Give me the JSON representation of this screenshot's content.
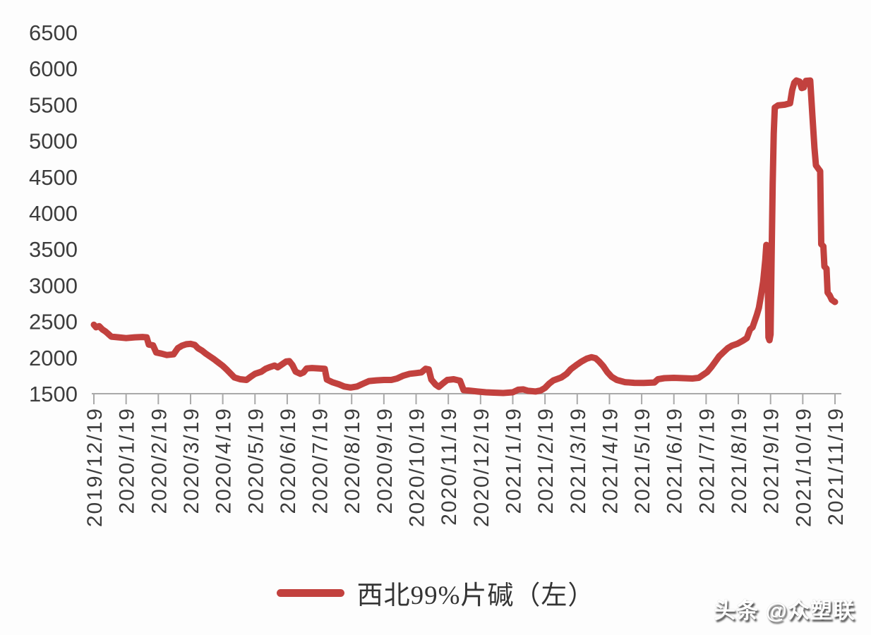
{
  "page": {
    "background": "#fdfdfd"
  },
  "legend": {
    "label": "西北99%片碱（左）",
    "swatch_color": "#c2413e"
  },
  "watermark": {
    "text": "头条 @众塑联"
  },
  "chart_data": {
    "type": "line",
    "title": "",
    "grid": false,
    "legend_position": "bottom",
    "axis_color": "#a9a9a9",
    "text_color": "#3d3d3d",
    "x_axis": {
      "start_date": "2019-12-19",
      "months": 23,
      "label_rotation": -90,
      "tick_labels": [
        "2019/12/19",
        "2020/1/19",
        "2020/2/19",
        "2020/3/19",
        "2020/4/19",
        "2020/5/19",
        "2020/6/19",
        "2020/7/19",
        "2020/8/19",
        "2020/9/19",
        "2020/10/19",
        "2020/11/19",
        "2020/12/19",
        "2021/1/19",
        "2021/2/19",
        "2021/3/19",
        "2021/4/19",
        "2021/5/19",
        "2021/6/19",
        "2021/7/19",
        "2021/8/19",
        "2021/9/19",
        "2021/10/19",
        "2021/11/19"
      ]
    },
    "y_axis": {
      "min": 1500,
      "max": 6500,
      "step": 500,
      "tick_labels": [
        "1500",
        "2000",
        "2500",
        "3000",
        "3500",
        "4000",
        "4500",
        "5000",
        "5500",
        "6000",
        "6500"
      ]
    },
    "series": [
      {
        "name": "西北99%片碱（左）",
        "color": "#c2413e",
        "points": [
          [
            "2019-12-19",
            2455
          ],
          [
            "2019-12-21",
            2420
          ],
          [
            "2019-12-24",
            2435
          ],
          [
            "2019-12-27",
            2390
          ],
          [
            "2019-12-30",
            2360
          ],
          [
            "2020-01-02",
            2330
          ],
          [
            "2020-01-05",
            2290
          ],
          [
            "2020-01-12",
            2280
          ],
          [
            "2020-01-19",
            2270
          ],
          [
            "2020-01-27",
            2280
          ],
          [
            "2020-02-04",
            2285
          ],
          [
            "2020-02-08",
            2280
          ],
          [
            "2020-02-10",
            2180
          ],
          [
            "2020-02-14",
            2170
          ],
          [
            "2020-02-17",
            2070
          ],
          [
            "2020-02-22",
            2055
          ],
          [
            "2020-02-27",
            2035
          ],
          [
            "2020-03-03",
            2045
          ],
          [
            "2020-03-07",
            2130
          ],
          [
            "2020-03-11",
            2165
          ],
          [
            "2020-03-15",
            2185
          ],
          [
            "2020-03-19",
            2190
          ],
          [
            "2020-03-23",
            2175
          ],
          [
            "2020-03-26",
            2130
          ],
          [
            "2020-03-30",
            2095
          ],
          [
            "2020-04-03",
            2055
          ],
          [
            "2020-04-07",
            2015
          ],
          [
            "2020-04-11",
            1975
          ],
          [
            "2020-04-15",
            1930
          ],
          [
            "2020-04-19",
            1885
          ],
          [
            "2020-04-23",
            1830
          ],
          [
            "2020-04-27",
            1770
          ],
          [
            "2020-04-30",
            1725
          ],
          [
            "2020-05-05",
            1700
          ],
          [
            "2020-05-11",
            1690
          ],
          [
            "2020-05-15",
            1735
          ],
          [
            "2020-05-19",
            1775
          ],
          [
            "2020-05-25",
            1805
          ],
          [
            "2020-05-29",
            1845
          ],
          [
            "2020-06-03",
            1870
          ],
          [
            "2020-06-07",
            1890
          ],
          [
            "2020-06-10",
            1865
          ],
          [
            "2020-06-14",
            1905
          ],
          [
            "2020-06-18",
            1945
          ],
          [
            "2020-06-21",
            1950
          ],
          [
            "2020-06-24",
            1895
          ],
          [
            "2020-06-27",
            1805
          ],
          [
            "2020-07-01",
            1775
          ],
          [
            "2020-07-04",
            1795
          ],
          [
            "2020-07-07",
            1850
          ],
          [
            "2020-07-12",
            1855
          ],
          [
            "2020-07-19",
            1850
          ],
          [
            "2020-07-24",
            1845
          ],
          [
            "2020-07-26",
            1695
          ],
          [
            "2020-07-31",
            1660
          ],
          [
            "2020-08-07",
            1630
          ],
          [
            "2020-08-12",
            1600
          ],
          [
            "2020-08-18",
            1585
          ],
          [
            "2020-08-24",
            1600
          ],
          [
            "2020-08-30",
            1640
          ],
          [
            "2020-09-05",
            1675
          ],
          [
            "2020-09-12",
            1685
          ],
          [
            "2020-09-19",
            1690
          ],
          [
            "2020-09-26",
            1690
          ],
          [
            "2020-10-01",
            1710
          ],
          [
            "2020-10-07",
            1750
          ],
          [
            "2020-10-13",
            1775
          ],
          [
            "2020-10-19",
            1785
          ],
          [
            "2020-10-24",
            1795
          ],
          [
            "2020-10-28",
            1845
          ],
          [
            "2020-10-31",
            1835
          ],
          [
            "2020-11-03",
            1695
          ],
          [
            "2020-11-07",
            1625
          ],
          [
            "2020-11-10",
            1595
          ],
          [
            "2020-11-14",
            1645
          ],
          [
            "2020-11-18",
            1690
          ],
          [
            "2020-11-24",
            1700
          ],
          [
            "2020-11-30",
            1680
          ],
          [
            "2020-12-03",
            1550
          ],
          [
            "2020-12-10",
            1540
          ],
          [
            "2020-12-16",
            1530
          ],
          [
            "2020-12-24",
            1520
          ],
          [
            "2021-01-01",
            1515
          ],
          [
            "2021-01-10",
            1510
          ],
          [
            "2021-01-19",
            1520
          ],
          [
            "2021-01-24",
            1555
          ],
          [
            "2021-01-29",
            1560
          ],
          [
            "2021-02-03",
            1540
          ],
          [
            "2021-02-10",
            1530
          ],
          [
            "2021-02-15",
            1545
          ],
          [
            "2021-02-19",
            1580
          ],
          [
            "2021-02-23",
            1640
          ],
          [
            "2021-02-27",
            1685
          ],
          [
            "2021-03-04",
            1725
          ],
          [
            "2021-03-09",
            1775
          ],
          [
            "2021-03-13",
            1840
          ],
          [
            "2021-03-18",
            1895
          ],
          [
            "2021-03-23",
            1945
          ],
          [
            "2021-03-28",
            1985
          ],
          [
            "2021-04-02",
            2005
          ],
          [
            "2021-04-06",
            1990
          ],
          [
            "2021-04-09",
            1950
          ],
          [
            "2021-04-13",
            1885
          ],
          [
            "2021-04-17",
            1800
          ],
          [
            "2021-04-21",
            1735
          ],
          [
            "2021-04-26",
            1690
          ],
          [
            "2021-05-03",
            1660
          ],
          [
            "2021-05-12",
            1650
          ],
          [
            "2021-05-21",
            1648
          ],
          [
            "2021-05-31",
            1655
          ],
          [
            "2021-06-04",
            1700
          ],
          [
            "2021-06-10",
            1715
          ],
          [
            "2021-06-19",
            1720
          ],
          [
            "2021-06-28",
            1715
          ],
          [
            "2021-07-06",
            1710
          ],
          [
            "2021-07-12",
            1720
          ],
          [
            "2021-07-16",
            1760
          ],
          [
            "2021-07-20",
            1800
          ],
          [
            "2021-07-24",
            1870
          ],
          [
            "2021-07-28",
            1950
          ],
          [
            "2021-08-01",
            2020
          ],
          [
            "2021-08-05",
            2075
          ],
          [
            "2021-08-09",
            2130
          ],
          [
            "2021-08-13",
            2165
          ],
          [
            "2021-08-18",
            2190
          ],
          [
            "2021-08-23",
            2230
          ],
          [
            "2021-08-27",
            2270
          ],
          [
            "2021-08-30",
            2390
          ],
          [
            "2021-09-02",
            2420
          ],
          [
            "2021-09-06",
            2590
          ],
          [
            "2021-09-08",
            2690
          ],
          [
            "2021-09-10",
            2860
          ],
          [
            "2021-09-12",
            3050
          ],
          [
            "2021-09-14",
            3350
          ],
          [
            "2021-09-15",
            3560
          ],
          [
            "2021-09-16",
            3540
          ],
          [
            "2021-09-17",
            2280
          ],
          [
            "2021-09-18",
            2240
          ],
          [
            "2021-09-19",
            2320
          ],
          [
            "2021-09-20",
            3400
          ],
          [
            "2021-09-21",
            4400
          ],
          [
            "2021-09-22",
            5100
          ],
          [
            "2021-09-23",
            5460
          ],
          [
            "2021-09-26",
            5490
          ],
          [
            "2021-10-02",
            5500
          ],
          [
            "2021-10-07",
            5520
          ],
          [
            "2021-10-09",
            5700
          ],
          [
            "2021-10-11",
            5805
          ],
          [
            "2021-10-13",
            5835
          ],
          [
            "2021-10-16",
            5820
          ],
          [
            "2021-10-18",
            5730
          ],
          [
            "2021-10-20",
            5740
          ],
          [
            "2021-10-22",
            5830
          ],
          [
            "2021-10-26",
            5835
          ],
          [
            "2021-10-27",
            5600
          ],
          [
            "2021-10-28",
            5360
          ],
          [
            "2021-10-30",
            4900
          ],
          [
            "2021-11-01",
            4660
          ],
          [
            "2021-11-04",
            4600
          ],
          [
            "2021-11-05",
            4580
          ],
          [
            "2021-11-06",
            3570
          ],
          [
            "2021-11-08",
            3540
          ],
          [
            "2021-11-09",
            3260
          ],
          [
            "2021-11-11",
            3230
          ],
          [
            "2021-11-12",
            2900
          ],
          [
            "2021-11-14",
            2860
          ],
          [
            "2021-11-16",
            2800
          ],
          [
            "2021-11-19",
            2770
          ]
        ]
      }
    ]
  }
}
